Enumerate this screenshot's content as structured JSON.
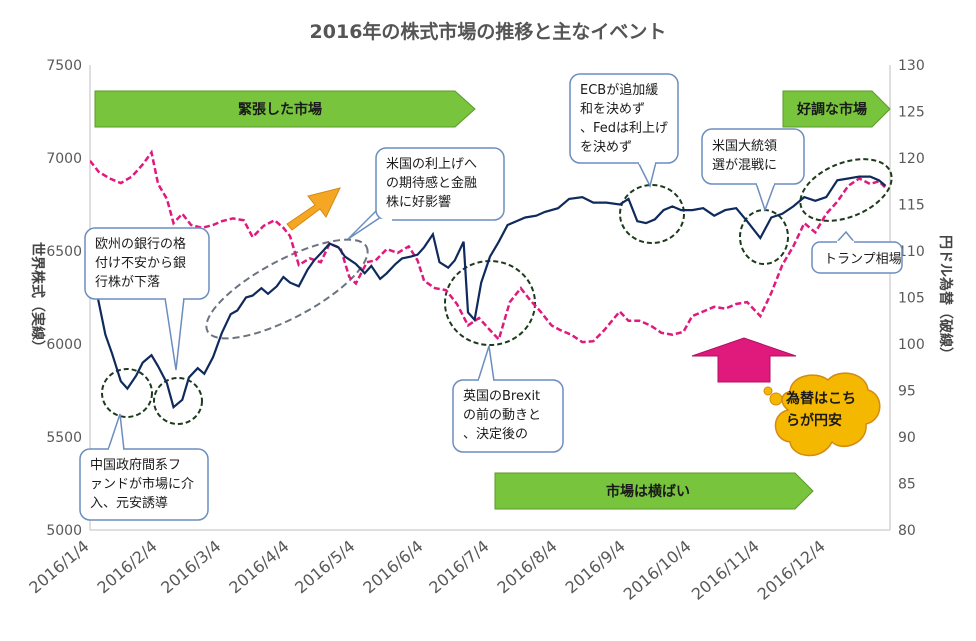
{
  "chart_data": {
    "type": "line",
    "title": "2016年の株式市場の推移と主なイベント",
    "y_left_label": "世界株式（実線）",
    "y_right_label": "円ドル為替（破線）",
    "y_left_range": [
      5000,
      7500
    ],
    "y_left_ticks": [
      "5000",
      "5500",
      "6000",
      "6500",
      "7000",
      "7500"
    ],
    "y_right_range": [
      80,
      130
    ],
    "y_right_ticks": [
      "80",
      "85",
      "90",
      "95",
      "100",
      "105",
      "110",
      "115",
      "120",
      "125",
      "130"
    ],
    "x_range": [
      "2016/1/4",
      "2017/1/2"
    ],
    "x_tick_labels": [
      "2016/1/4",
      "2016/2/4",
      "2016/3/4",
      "2016/4/4",
      "2016/5/4",
      "2016/6/4",
      "2016/7/4",
      "2016/8/4",
      "2016/9/4",
      "2016/10/4",
      "2016/11/4",
      "2016/12/4"
    ],
    "grid": false,
    "legend": "none",
    "series": [
      {
        "name": "世界株式（実線）",
        "axis": "left",
        "style": "solid",
        "color": "#0f2a5c",
        "points": [
          [
            "2016/1/4",
            6400
          ],
          [
            "2016/1/7",
            6280
          ],
          [
            "2016/1/11",
            6050
          ],
          [
            "2016/1/14",
            5950
          ],
          [
            "2016/1/18",
            5800
          ],
          [
            "2016/1/21",
            5760
          ],
          [
            "2016/1/25",
            5830
          ],
          [
            "2016/1/28",
            5900
          ],
          [
            "2016/2/1",
            5940
          ],
          [
            "2016/2/4",
            5880
          ],
          [
            "2016/2/8",
            5790
          ],
          [
            "2016/2/11",
            5660
          ],
          [
            "2016/2/15",
            5700
          ],
          [
            "2016/2/18",
            5820
          ],
          [
            "2016/2/22",
            5870
          ],
          [
            "2016/2/25",
            5840
          ],
          [
            "2016/2/29",
            5930
          ],
          [
            "2016/3/4",
            6060
          ],
          [
            "2016/3/8",
            6160
          ],
          [
            "2016/3/11",
            6180
          ],
          [
            "2016/3/15",
            6250
          ],
          [
            "2016/3/18",
            6260
          ],
          [
            "2016/3/22",
            6300
          ],
          [
            "2016/3/25",
            6270
          ],
          [
            "2016/3/29",
            6310
          ],
          [
            "2016/4/1",
            6360
          ],
          [
            "2016/4/4",
            6330
          ],
          [
            "2016/4/8",
            6310
          ],
          [
            "2016/4/12",
            6400
          ],
          [
            "2016/4/15",
            6450
          ],
          [
            "2016/4/19",
            6500
          ],
          [
            "2016/4/22",
            6540
          ],
          [
            "2016/4/26",
            6520
          ],
          [
            "2016/4/29",
            6470
          ],
          [
            "2016/5/4",
            6430
          ],
          [
            "2016/5/8",
            6380
          ],
          [
            "2016/5/11",
            6420
          ],
          [
            "2016/5/15",
            6350
          ],
          [
            "2016/5/18",
            6380
          ],
          [
            "2016/5/22",
            6430
          ],
          [
            "2016/5/25",
            6460
          ],
          [
            "2016/5/29",
            6470
          ],
          [
            "2016/6/1",
            6480
          ],
          [
            "2016/6/4",
            6520
          ],
          [
            "2016/6/8",
            6590
          ],
          [
            "2016/6/11",
            6440
          ],
          [
            "2016/6/15",
            6410
          ],
          [
            "2016/6/18",
            6450
          ],
          [
            "2016/6/22",
            6550
          ],
          [
            "2016/6/24",
            6170
          ],
          [
            "2016/6/27",
            6130
          ],
          [
            "2016/6/30",
            6330
          ],
          [
            "2016/7/4",
            6470
          ],
          [
            "2016/7/8",
            6550
          ],
          [
            "2016/7/12",
            6640
          ],
          [
            "2016/7/16",
            6660
          ],
          [
            "2016/7/20",
            6680
          ],
          [
            "2016/7/25",
            6690
          ],
          [
            "2016/7/29",
            6710
          ],
          [
            "2016/8/4",
            6730
          ],
          [
            "2016/8/9",
            6780
          ],
          [
            "2016/8/15",
            6790
          ],
          [
            "2016/8/20",
            6760
          ],
          [
            "2016/8/26",
            6760
          ],
          [
            "2016/9/1",
            6750
          ],
          [
            "2016/9/5",
            6780
          ],
          [
            "2016/9/9",
            6660
          ],
          [
            "2016/9/13",
            6650
          ],
          [
            "2016/9/17",
            6670
          ],
          [
            "2016/9/21",
            6720
          ],
          [
            "2016/9/25",
            6740
          ],
          [
            "2016/9/29",
            6720
          ],
          [
            "2016/10/4",
            6720
          ],
          [
            "2016/10/9",
            6730
          ],
          [
            "2016/10/14",
            6690
          ],
          [
            "2016/10/19",
            6720
          ],
          [
            "2016/10/24",
            6730
          ],
          [
            "2016/10/29",
            6660
          ],
          [
            "2016/11/4",
            6570
          ],
          [
            "2016/11/9",
            6680
          ],
          [
            "2016/11/14",
            6700
          ],
          [
            "2016/11/19",
            6740
          ],
          [
            "2016/11/24",
            6790
          ],
          [
            "2016/11/29",
            6770
          ],
          [
            "2016/12/4",
            6790
          ],
          [
            "2016/12/9",
            6880
          ],
          [
            "2016/12/14",
            6890
          ],
          [
            "2016/12/19",
            6900
          ],
          [
            "2016/12/24",
            6900
          ],
          [
            "2016/12/28",
            6880
          ],
          [
            "2016/12/31",
            6850
          ]
        ]
      },
      {
        "name": "円ドル為替（破線）",
        "axis": "right",
        "style": "dashed",
        "color": "#e0197d",
        "points": [
          [
            "2016/1/4",
            119.7
          ],
          [
            "2016/1/8",
            118.5
          ],
          [
            "2016/1/13",
            117.8
          ],
          [
            "2016/1/18",
            117.3
          ],
          [
            "2016/1/23",
            118.0
          ],
          [
            "2016/1/28",
            119.3
          ],
          [
            "2016/2/1",
            120.6
          ],
          [
            "2016/2/4",
            117.2
          ],
          [
            "2016/2/8",
            115.6
          ],
          [
            "2016/2/11",
            113.0
          ],
          [
            "2016/2/15",
            114.0
          ],
          [
            "2016/2/19",
            112.8
          ],
          [
            "2016/2/24",
            112.5
          ],
          [
            "2016/2/29",
            112.8
          ],
          [
            "2016/3/4",
            113.2
          ],
          [
            "2016/3/9",
            113.5
          ],
          [
            "2016/3/14",
            113.3
          ],
          [
            "2016/3/18",
            111.5
          ],
          [
            "2016/3/23",
            112.7
          ],
          [
            "2016/3/28",
            113.3
          ],
          [
            "2016/4/1",
            112.5
          ],
          [
            "2016/4/4",
            111.6
          ],
          [
            "2016/4/8",
            108.5
          ],
          [
            "2016/4/13",
            109.2
          ],
          [
            "2016/4/18",
            108.8
          ],
          [
            "2016/4/22",
            110.8
          ],
          [
            "2016/4/27",
            110.3
          ],
          [
            "2016/5/1",
            107.2
          ],
          [
            "2016/5/4",
            106.5
          ],
          [
            "2016/5/9",
            108.8
          ],
          [
            "2016/5/13",
            109.0
          ],
          [
            "2016/5/18",
            110.2
          ],
          [
            "2016/5/23",
            109.8
          ],
          [
            "2016/5/28",
            110.5
          ],
          [
            "2016/6/1",
            109.0
          ],
          [
            "2016/6/4",
            106.8
          ],
          [
            "2016/6/9",
            106.0
          ],
          [
            "2016/6/14",
            105.8
          ],
          [
            "2016/6/19",
            104.3
          ],
          [
            "2016/6/24",
            102.0
          ],
          [
            "2016/6/29",
            102.8
          ],
          [
            "2016/7/4",
            101.5
          ],
          [
            "2016/7/8",
            100.5
          ],
          [
            "2016/7/13",
            104.5
          ],
          [
            "2016/7/18",
            106.0
          ],
          [
            "2016/7/22",
            104.8
          ],
          [
            "2016/7/27",
            103.5
          ],
          [
            "2016/8/1",
            102.0
          ],
          [
            "2016/8/5",
            101.5
          ],
          [
            "2016/8/10",
            101.0
          ],
          [
            "2016/8/15",
            100.2
          ],
          [
            "2016/8/20",
            100.3
          ],
          [
            "2016/8/25",
            101.5
          ],
          [
            "2016/9/1",
            103.5
          ],
          [
            "2016/9/5",
            102.5
          ],
          [
            "2016/9/10",
            102.5
          ],
          [
            "2016/9/15",
            102.0
          ],
          [
            "2016/9/20",
            101.2
          ],
          [
            "2016/9/25",
            101.0
          ],
          [
            "2016/9/30",
            101.3
          ],
          [
            "2016/10/4",
            103.0
          ],
          [
            "2016/10/9",
            103.5
          ],
          [
            "2016/10/14",
            104.0
          ],
          [
            "2016/10/19",
            103.8
          ],
          [
            "2016/10/24",
            104.3
          ],
          [
            "2016/10/29",
            104.5
          ],
          [
            "2016/11/4",
            103.0
          ],
          [
            "2016/11/9",
            105.5
          ],
          [
            "2016/11/14",
            108.5
          ],
          [
            "2016/11/19",
            110.5
          ],
          [
            "2016/11/24",
            113.0
          ],
          [
            "2016/11/29",
            112.0
          ],
          [
            "2016/12/4",
            114.0
          ],
          [
            "2016/12/9",
            115.3
          ],
          [
            "2016/12/14",
            117.0
          ],
          [
            "2016/12/19",
            117.8
          ],
          [
            "2016/12/24",
            117.2
          ],
          [
            "2016/12/28",
            117.5
          ],
          [
            "2016/12/31",
            116.8
          ]
        ]
      }
    ],
    "annotations": {
      "tense_market": "緊張した市場",
      "good_market": "好調な市場",
      "flat_market": "市場は横ばい",
      "china": "中国政府間系ファンドが市場に介入、元安誘導",
      "europe_banks": "欧州の銀行の格付け不安から銀行株が下落",
      "us_rate": "米国の利上げへの期待感と金融株に好影響",
      "brexit": "英国のBrexitの前の動きと、決定後の動き",
      "ecb": "ECBが追加緩和を決めず、Fedは利上げを決めず",
      "us_election": "米国大統領選が混戦に",
      "trump": "トランプ相場",
      "yen_cheap": "為替はこちらが円安"
    },
    "colors": {
      "green_arrow_fill": "#78c43c",
      "green_arrow_stroke": "#5a9a2a",
      "orange_arrow": "#f5a623",
      "pink_arrow": "#e0197d",
      "callout_border": "#6c8ebf",
      "yellow_cloud": "#f5b800",
      "ellipse_gray": "#6b7280",
      "ellipse_green": "#1d3a1d"
    }
  }
}
